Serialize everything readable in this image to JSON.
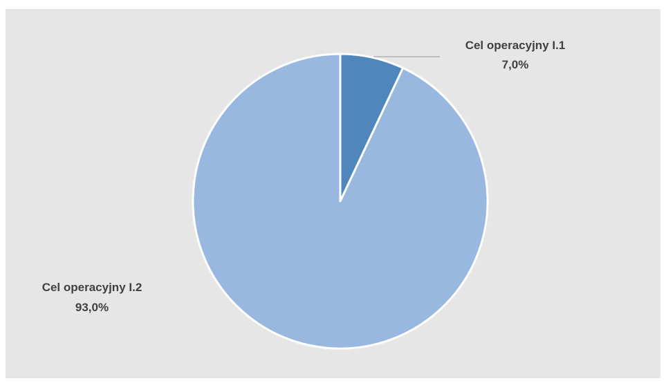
{
  "chart_data": {
    "type": "pie",
    "title": "",
    "slices": [
      {
        "label": "Cel operacyjny I.1",
        "value": 7.0,
        "value_label": "7,0%",
        "color": "#4f87bd"
      },
      {
        "label": "Cel operacyjny I.2",
        "value": 93.0,
        "value_label": "93,0%",
        "color": "#98b8df"
      }
    ],
    "start_angle": "12 o'clock, clockwise",
    "legend": "none",
    "data_labels": "outside",
    "background_color": "#e6e6e6",
    "slice_border_color": "#ffffff"
  }
}
